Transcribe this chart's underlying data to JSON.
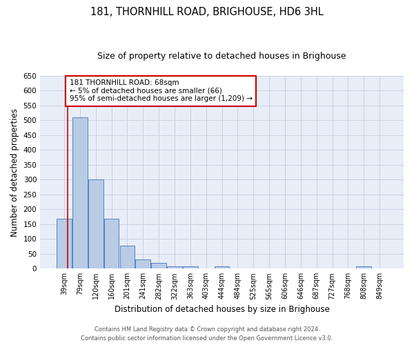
{
  "title": "181, THORNHILL ROAD, BRIGHOUSE, HD6 3HL",
  "subtitle": "Size of property relative to detached houses in Brighouse",
  "xlabel": "Distribution of detached houses by size in Brighouse",
  "ylabel": "Number of detached properties",
  "categories": [
    "39sqm",
    "79sqm",
    "120sqm",
    "160sqm",
    "201sqm",
    "241sqm",
    "282sqm",
    "322sqm",
    "363sqm",
    "403sqm",
    "444sqm",
    "484sqm",
    "525sqm",
    "565sqm",
    "606sqm",
    "646sqm",
    "687sqm",
    "727sqm",
    "768sqm",
    "808sqm",
    "849sqm"
  ],
  "values": [
    168,
    510,
    302,
    168,
    78,
    32,
    20,
    8,
    8,
    0,
    8,
    0,
    0,
    0,
    0,
    0,
    0,
    0,
    0,
    8,
    0
  ],
  "bar_color": "#b8cce4",
  "bar_edge_color": "#4472c4",
  "grid_color": "#c8d0e0",
  "bg_color": "#e8eef8",
  "annotation_line_color": "#cc0000",
  "annotation_box_text": "181 THORNHILL ROAD: 68sqm\n← 5% of detached houses are smaller (66)\n95% of semi-detached houses are larger (1,209) →",
  "annotation_box_color": "#cc0000",
  "annotation_box_bg": "#ffffff",
  "annotation_text_fontsize": 7.5,
  "title_fontsize": 10.5,
  "subtitle_fontsize": 9,
  "xlabel_fontsize": 8.5,
  "ylabel_fontsize": 8.5,
  "footer_line1": "Contains HM Land Registry data © Crown copyright and database right 2024.",
  "footer_line2": "Contains public sector information licensed under the Open Government Licence v3.0.",
  "ylim": [
    0,
    650
  ],
  "yticks": [
    0,
    50,
    100,
    150,
    200,
    250,
    300,
    350,
    400,
    450,
    500,
    550,
    600,
    650
  ]
}
